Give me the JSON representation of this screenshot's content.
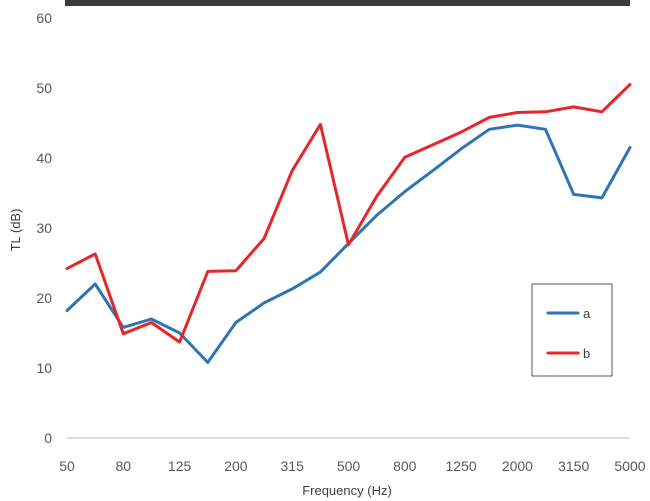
{
  "chart_data": {
    "type": "line",
    "title": "",
    "xlabel": "Frequency (Hz)",
    "ylabel": "TL (dB)",
    "ylim": [
      0,
      60
    ],
    "yticks": [
      0,
      10,
      20,
      30,
      40,
      50,
      60
    ],
    "grid": false,
    "legend_position": "right",
    "categories": [
      "50",
      "63",
      "80",
      "100",
      "125",
      "160",
      "200",
      "250",
      "315",
      "400",
      "500",
      "630",
      "800",
      "1000",
      "1250",
      "1600",
      "2000",
      "2500",
      "3150",
      "4000",
      "5000"
    ],
    "x_tick_labels": [
      "50",
      "80",
      "125",
      "200",
      "315",
      "500",
      "800",
      "1250",
      "2000",
      "3150",
      "5000"
    ],
    "series": [
      {
        "name": "a",
        "color": "#2e75b6",
        "values": [
          18.2,
          22.0,
          15.8,
          17.0,
          15.0,
          10.8,
          16.5,
          19.3,
          21.3,
          23.7,
          27.8,
          31.8,
          35.2,
          38.2,
          41.3,
          44.1,
          44.7,
          44.1,
          34.8,
          34.3,
          41.5
        ]
      },
      {
        "name": "b",
        "color": "#e8262a",
        "values": [
          24.2,
          26.3,
          14.9,
          16.5,
          13.7,
          23.8,
          23.9,
          28.5,
          38.2,
          44.8,
          27.6,
          34.5,
          40.1,
          41.9,
          43.7,
          45.8,
          46.5,
          46.6,
          47.3,
          46.6,
          50.5
        ]
      }
    ]
  }
}
